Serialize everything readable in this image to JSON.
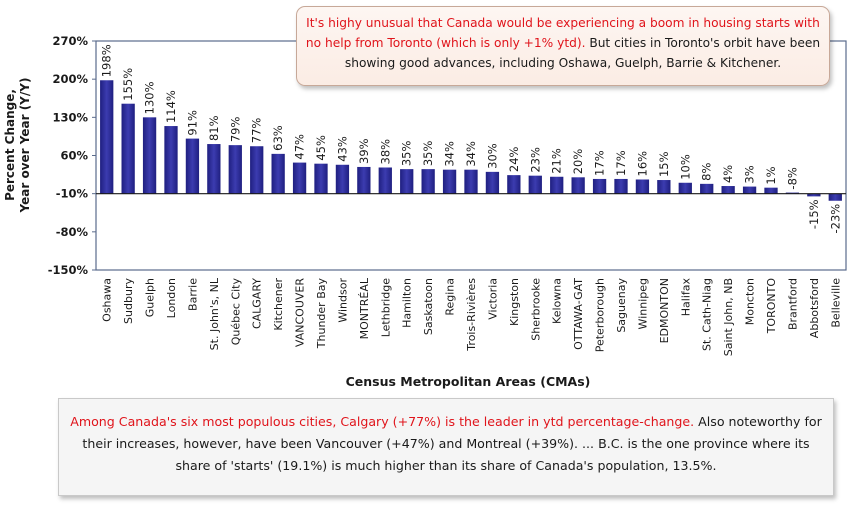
{
  "chart_data": {
    "type": "bar",
    "xlabel": "Census Metropolitan Areas (CMAs)",
    "ylabel_line1": "Percent Change,",
    "ylabel_line2": "Year over Year (Y/Y)",
    "ylim": [
      -150,
      270
    ],
    "yticks": [
      270,
      200,
      130,
      60,
      -10,
      -80,
      -150
    ],
    "ytick_labels": [
      "270%",
      "200%",
      "130%",
      "60%",
      "-10%",
      "-80%",
      "-150%"
    ],
    "baseline": -10,
    "grid": false,
    "bar_color": "#2f2f9a",
    "categories": [
      "Oshawa",
      "Sudbury",
      "Guelph",
      "London",
      "Barrie",
      "St. John's, NL",
      "Québec City",
      "CALGARY",
      "Kitchener",
      "VANCOUVER",
      "Thunder Bay",
      "Windsor",
      "MONTRÉAL",
      "Lethbridge",
      "Hamilton",
      "Saskatoon",
      "Regina",
      "Trois-Rivières",
      "Victoria",
      "Kingston",
      "Sherbrooke",
      "Kelowna",
      "OTTAWA-GAT",
      "Peterborough",
      "Saguenay",
      "Winnipeg",
      "EDMONTON",
      "Halifax",
      "St. Cath-Niag",
      "Saint John, NB",
      "Moncton",
      "TORONTO",
      "Brantford",
      "Abbotsford",
      "Belleville"
    ],
    "values": [
      198,
      155,
      130,
      114,
      91,
      81,
      79,
      77,
      63,
      47,
      45,
      43,
      39,
      38,
      35,
      35,
      34,
      34,
      30,
      24,
      23,
      21,
      20,
      17,
      17,
      16,
      15,
      10,
      8,
      4,
      3,
      1,
      -8,
      -15,
      -23
    ],
    "value_labels": [
      "198%",
      "155%",
      "130%",
      "114%",
      "91%",
      "81%",
      "79%",
      "77%",
      "63%",
      "47%",
      "45%",
      "43%",
      "39%",
      "38%",
      "35%",
      "35%",
      "34%",
      "34%",
      "30%",
      "24%",
      "23%",
      "21%",
      "20%",
      "17%",
      "17%",
      "16%",
      "15%",
      "10%",
      "8%",
      "4%",
      "3%",
      "1%",
      "-8%",
      "-15%",
      "-23%"
    ]
  },
  "callout_top": {
    "red_text": "It's highy unusual that Canada would be experiencing a boom in housing starts with no help from Toronto (which is only +1% ytd).",
    "black_text": " But cities in Toronto's orbit have been showing good advances, including Oshawa, Guelph, Barrie & Kitchener."
  },
  "callout_bottom": {
    "red_text": "Among Canada's six most populous cities, Calgary (+77%) is the leader in ytd percentage-change.",
    "black_text": " Also noteworthy for their increases, however, have been Vancouver (+47%) and Montreal (+39%). ... B.C. is the one province where its share of 'starts' (19.1%) is much higher than its share of Canada's population, 13.5%."
  },
  "colors": {
    "accent_red": "#e0141b",
    "plot_border": "#5a6b8c",
    "callout_top_border": "#c7a898"
  }
}
